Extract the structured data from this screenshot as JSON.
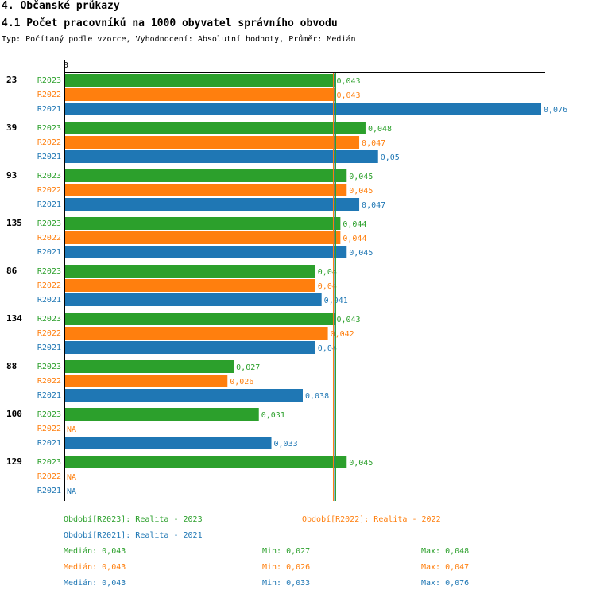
{
  "header": {
    "section": "4. Občanské průkazy",
    "title": "4.1 Počet pracovníků na 1000 obyvatel správního obvodu",
    "subtitle": "Typ: Počítaný podle vzorce, Vyhodnocení: Absolutní hodnoty, Průměr: Medián"
  },
  "chart_data": {
    "type": "bar",
    "orientation": "horizontal",
    "x_zero_label": "0",
    "xlim": [
      0,
      0.076
    ],
    "colors": {
      "R2023": "#2ca02c",
      "R2022": "#ff7f0e",
      "R2021": "#1f77b4"
    },
    "groups": [
      {
        "id": "23",
        "rows": [
          {
            "series": "R2023",
            "value": 0.043,
            "label": "0,043"
          },
          {
            "series": "R2022",
            "value": 0.043,
            "label": "0,043"
          },
          {
            "series": "R2021",
            "value": 0.076,
            "label": "0,076"
          }
        ]
      },
      {
        "id": "39",
        "rows": [
          {
            "series": "R2023",
            "value": 0.048,
            "label": "0,048"
          },
          {
            "series": "R2022",
            "value": 0.047,
            "label": "0,047"
          },
          {
            "series": "R2021",
            "value": 0.05,
            "label": "0,05"
          }
        ]
      },
      {
        "id": "93",
        "rows": [
          {
            "series": "R2023",
            "value": 0.045,
            "label": "0,045"
          },
          {
            "series": "R2022",
            "value": 0.045,
            "label": "0,045"
          },
          {
            "series": "R2021",
            "value": 0.047,
            "label": "0,047"
          }
        ]
      },
      {
        "id": "135",
        "rows": [
          {
            "series": "R2023",
            "value": 0.044,
            "label": "0,044"
          },
          {
            "series": "R2022",
            "value": 0.044,
            "label": "0,044"
          },
          {
            "series": "R2021",
            "value": 0.045,
            "label": "0,045"
          }
        ]
      },
      {
        "id": "86",
        "rows": [
          {
            "series": "R2023",
            "value": 0.04,
            "label": "0,04"
          },
          {
            "series": "R2022",
            "value": 0.04,
            "label": "0,04"
          },
          {
            "series": "R2021",
            "value": 0.041,
            "label": "0,041"
          }
        ]
      },
      {
        "id": "134",
        "rows": [
          {
            "series": "R2023",
            "value": 0.043,
            "label": "0,043"
          },
          {
            "series": "R2022",
            "value": 0.042,
            "label": "0,042"
          },
          {
            "series": "R2021",
            "value": 0.04,
            "label": "0,04"
          }
        ]
      },
      {
        "id": "88",
        "rows": [
          {
            "series": "R2023",
            "value": 0.027,
            "label": "0,027"
          },
          {
            "series": "R2022",
            "value": 0.026,
            "label": "0,026"
          },
          {
            "series": "R2021",
            "value": 0.038,
            "label": "0,038"
          }
        ]
      },
      {
        "id": "100",
        "rows": [
          {
            "series": "R2023",
            "value": 0.031,
            "label": "0,031"
          },
          {
            "series": "R2022",
            "value": null,
            "label": "NA"
          },
          {
            "series": "R2021",
            "value": 0.033,
            "label": "0,033"
          }
        ]
      },
      {
        "id": "129",
        "rows": [
          {
            "series": "R2023",
            "value": 0.045,
            "label": "0,045"
          },
          {
            "series": "R2022",
            "value": null,
            "label": "NA"
          },
          {
            "series": "R2021",
            "value": null,
            "label": "NA"
          }
        ]
      }
    ],
    "median_lines": {
      "R2023": 0.043,
      "R2022": 0.043,
      "R2021": 0.043
    }
  },
  "legend": {
    "r2023": "Období[R2023]: Realita - 2023",
    "r2022": "Období[R2022]: Realita - 2022",
    "r2021": "Období[R2021]: Realita - 2021",
    "stats": {
      "r2023": {
        "median": "Medián: 0,043",
        "min": "Min: 0,027",
        "max": "Max: 0,048"
      },
      "r2022": {
        "median": "Medián: 0,043",
        "min": "Min: 0,026",
        "max": "Max: 0,047"
      },
      "r2021": {
        "median": "Medián: 0,043",
        "min": "Min: 0,033",
        "max": "Max: 0,076"
      }
    }
  }
}
